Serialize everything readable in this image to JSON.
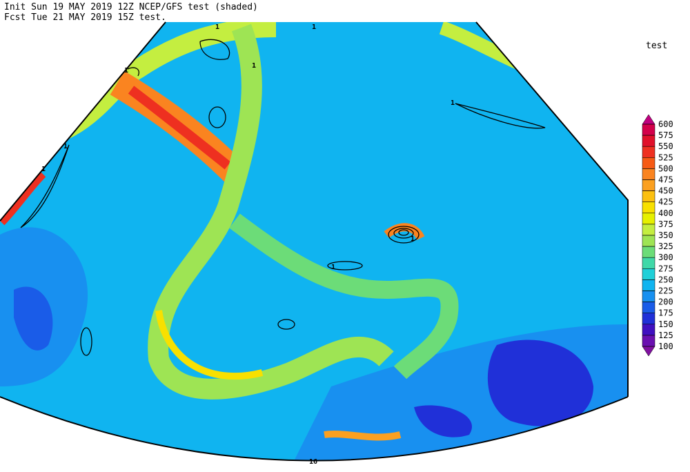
{
  "header": {
    "line1": "Init  Sun 19 MAY 2019 12Z  NCEP/GFS test (shaded)",
    "line2": "Fcst Tue 21 MAY 2019 15Z  test."
  },
  "colorbar": {
    "title": "test",
    "levels": [
      600,
      575,
      550,
      525,
      500,
      475,
      450,
      425,
      400,
      375,
      350,
      325,
      300,
      275,
      250,
      225,
      200,
      175,
      150,
      125,
      100
    ],
    "colors": [
      "#c0007f",
      "#d3004a",
      "#e0102a",
      "#ee3020",
      "#f65a14",
      "#fa8420",
      "#fba020",
      "#fcc010",
      "#f8e000",
      "#e6f000",
      "#c4ee40",
      "#9ee454",
      "#6cdc78",
      "#40d8a8",
      "#20d0d8",
      "#10b4f0",
      "#1890f0",
      "#1a5ce8",
      "#2030d8",
      "#4010c0",
      "#6a10b0",
      "#8010a0"
    ]
  },
  "contour_labels": [
    "1",
    "1",
    "1",
    "1",
    "1",
    "1",
    "1",
    "1",
    "1",
    "16"
  ]
}
